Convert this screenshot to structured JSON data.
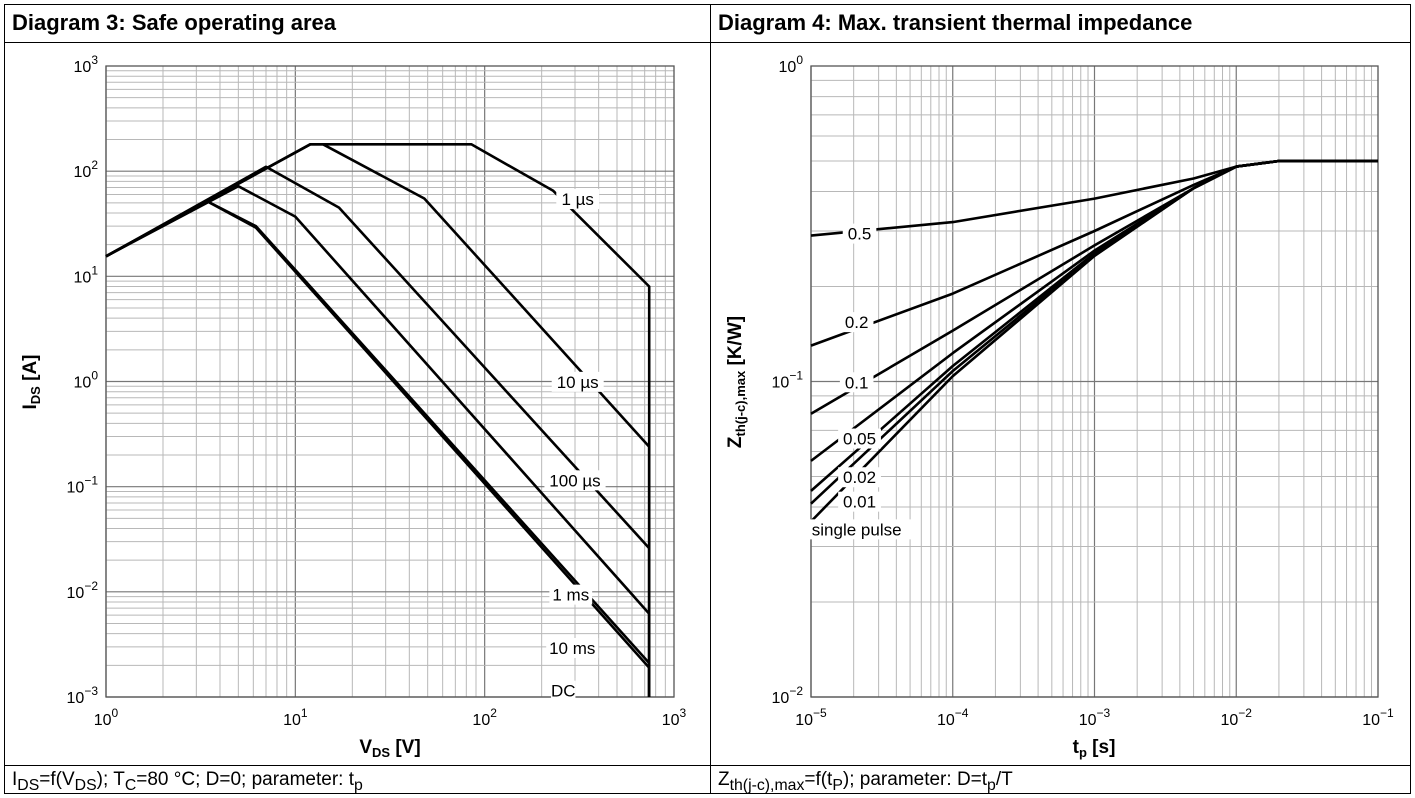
{
  "panels": [
    {
      "title": "Diagram 3: Safe operating area",
      "caption_html": "I<sub>DS</sub>=f(V<sub>DS</sub>); T<sub>C</sub>=80 °C; D=0; parameter: t<sub>p</sub>"
    },
    {
      "title": "Diagram 4: Max. transient thermal impedance",
      "caption_html": "Z<sub>th(j-c),max</sub>=f(t<sub>P</sub>); parameter: D=t<sub>p</sub>/T"
    }
  ],
  "chart_data": [
    {
      "type": "line",
      "title": "Diagram 3: Safe operating area",
      "xlabel": "V_DS [V]",
      "ylabel": "I_DS [A]",
      "xscale": "log",
      "yscale": "log",
      "xlim": [
        1,
        1000
      ],
      "ylim": [
        0.001,
        1000
      ],
      "grid": true,
      "x_tick_labels": [
        "10^0",
        "10^1",
        "10^2",
        "10^3"
      ],
      "y_tick_labels": [
        "10^-3",
        "10^-2",
        "10^-1",
        "10^0",
        "10^1",
        "10^2",
        "10^3"
      ],
      "series": [
        {
          "name": "1 µs",
          "points": [
            [
              1,
              15.5
            ],
            [
              12,
              180
            ],
            [
              85,
              180
            ],
            [
              230,
              65
            ],
            [
              740,
              8
            ],
            [
              740,
              0.001
            ]
          ]
        },
        {
          "name": "10 µs",
          "points": [
            [
              1,
              15.5
            ],
            [
              12,
              180
            ],
            [
              14,
              180
            ],
            [
              48,
              55
            ],
            [
              740,
              0.24
            ],
            [
              740,
              0.001
            ]
          ]
        },
        {
          "name": "100 µs",
          "points": [
            [
              1,
              15.5
            ],
            [
              7,
              110
            ],
            [
              17,
              45
            ],
            [
              740,
              0.026
            ],
            [
              740,
              0.001
            ]
          ]
        },
        {
          "name": "1 ms",
          "points": [
            [
              1,
              15.5
            ],
            [
              5,
              72
            ],
            [
              10,
              37
            ],
            [
              740,
              0.0062
            ],
            [
              740,
              0.001
            ]
          ]
        },
        {
          "name": "10 ms",
          "points": [
            [
              1,
              15.5
            ],
            [
              3.4,
              52
            ],
            [
              6.2,
              30
            ],
            [
              740,
              0.0021
            ],
            [
              740,
              0.001
            ]
          ]
        },
        {
          "name": "DC",
          "points": [
            [
              1,
              15.5
            ],
            [
              3.4,
              52
            ],
            [
              6.2,
              29
            ],
            [
              740,
              0.0019
            ],
            [
              740,
              0.001
            ]
          ]
        }
      ],
      "annotations": [
        "1 µs",
        "10 µs",
        "100 µs",
        "1 ms",
        "10 ms",
        "DC"
      ]
    },
    {
      "type": "line",
      "title": "Diagram 4: Max. transient thermal impedance",
      "xlabel": "t_p [s]",
      "ylabel": "Z_th(j-c),max [K/W]",
      "xscale": "log",
      "yscale": "log",
      "xlim": [
        1e-05,
        0.1
      ],
      "ylim": [
        0.01,
        1
      ],
      "grid": true,
      "x_tick_labels": [
        "10^-5",
        "10^-4",
        "10^-3",
        "10^-2",
        "10^-1"
      ],
      "y_tick_labels": [
        "10^-2",
        "10^-1",
        "10^0"
      ],
      "series": [
        {
          "name": "0.5",
          "points": [
            [
              1e-05,
              0.29
            ],
            [
              0.0001,
              0.32
            ],
            [
              0.001,
              0.38
            ],
            [
              0.005,
              0.44
            ],
            [
              0.01,
              0.48
            ],
            [
              0.02,
              0.5
            ],
            [
              0.1,
              0.5
            ]
          ]
        },
        {
          "name": "0.2",
          "points": [
            [
              1e-05,
              0.13
            ],
            [
              0.0001,
              0.19
            ],
            [
              0.001,
              0.3
            ],
            [
              0.005,
              0.42
            ],
            [
              0.01,
              0.48
            ],
            [
              0.02,
              0.5
            ],
            [
              0.1,
              0.5
            ]
          ]
        },
        {
          "name": "0.1",
          "points": [
            [
              1e-05,
              0.079
            ],
            [
              0.0001,
              0.145
            ],
            [
              0.001,
              0.27
            ],
            [
              0.005,
              0.41
            ],
            [
              0.01,
              0.48
            ],
            [
              0.02,
              0.5
            ],
            [
              0.1,
              0.5
            ]
          ]
        },
        {
          "name": "0.05",
          "points": [
            [
              1e-05,
              0.056
            ],
            [
              0.0001,
              0.123
            ],
            [
              0.001,
              0.26
            ],
            [
              0.005,
              0.41
            ],
            [
              0.01,
              0.48
            ],
            [
              0.02,
              0.5
            ],
            [
              0.1,
              0.5
            ]
          ]
        },
        {
          "name": "0.02",
          "points": [
            [
              1e-05,
              0.045
            ],
            [
              0.0001,
              0.112
            ],
            [
              0.001,
              0.255
            ],
            [
              0.005,
              0.41
            ],
            [
              0.01,
              0.48
            ],
            [
              0.02,
              0.5
            ],
            [
              0.1,
              0.5
            ]
          ]
        },
        {
          "name": "0.01",
          "points": [
            [
              1e-05,
              0.041
            ],
            [
              0.0001,
              0.108
            ],
            [
              0.001,
              0.252
            ],
            [
              0.005,
              0.41
            ],
            [
              0.01,
              0.48
            ],
            [
              0.02,
              0.5
            ],
            [
              0.1,
              0.5
            ]
          ]
        },
        {
          "name": "single pulse",
          "points": [
            [
              1e-05,
              0.036
            ],
            [
              0.0001,
              0.104
            ],
            [
              0.001,
              0.25
            ],
            [
              0.005,
              0.41
            ],
            [
              0.01,
              0.48
            ],
            [
              0.02,
              0.5
            ],
            [
              0.1,
              0.5
            ]
          ]
        }
      ],
      "annotations": [
        "0.5",
        "0.2",
        "0.1",
        "0.05",
        "0.02",
        "0.01",
        "single pulse"
      ]
    }
  ]
}
